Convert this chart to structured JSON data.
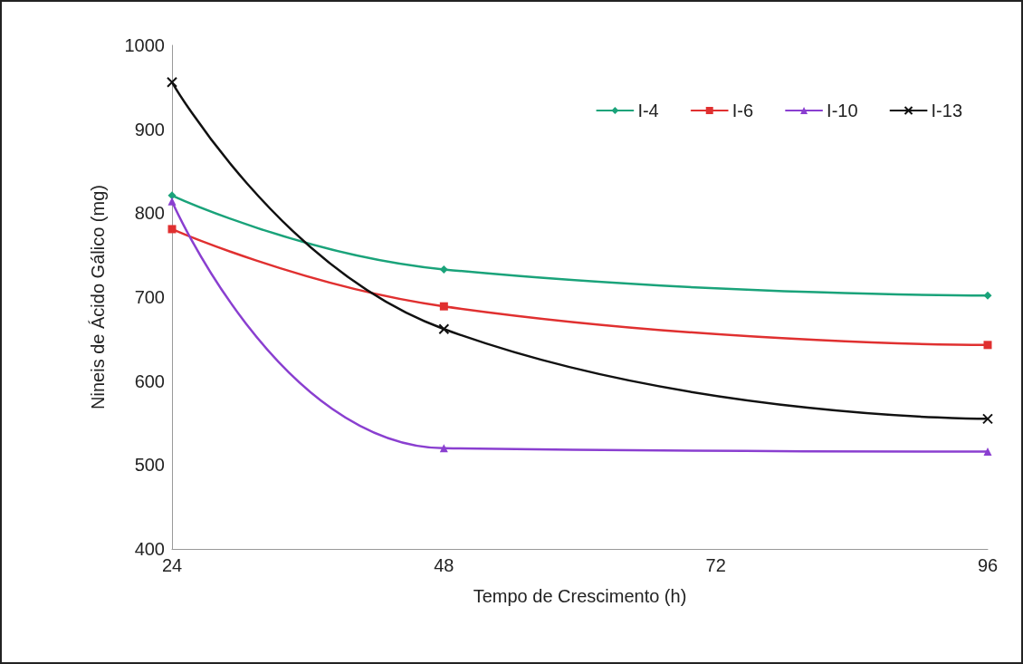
{
  "chart_data": {
    "type": "line",
    "xlabel": "Tempo de Crescimento (h)",
    "ylabel": "Nineis de Ácido Gálico (mg)",
    "x": [
      24,
      48,
      96
    ],
    "xlim": [
      24,
      96
    ],
    "xticks": [
      24,
      48,
      72,
      96
    ],
    "ylim": [
      400,
      1000
    ],
    "yticks": [
      400,
      500,
      600,
      700,
      800,
      900,
      1000
    ],
    "series": [
      {
        "name": "I-4",
        "color": "#1aa37a",
        "marker": "diamond",
        "values": [
          821,
          733,
          702
        ]
      },
      {
        "name": "I-6",
        "color": "#e03030",
        "marker": "square",
        "values": [
          781,
          689,
          643
        ]
      },
      {
        "name": "I-10",
        "color": "#8a3fd0",
        "marker": "triangle",
        "values": [
          814,
          520,
          516
        ]
      },
      {
        "name": "I-13",
        "color": "#111111",
        "marker": "cross",
        "values": [
          956,
          662,
          555
        ]
      }
    ],
    "grid": false,
    "legend": "top right",
    "line_style": "solid"
  }
}
